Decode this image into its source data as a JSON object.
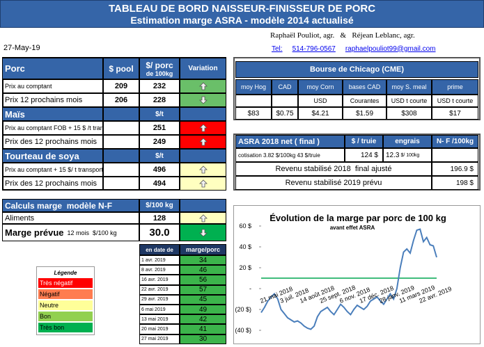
{
  "header": {
    "title": "TABLEAU DE BORD NAISSEUR-FINISSEUR DE PORC",
    "subtitle": "Estimation marge ASRA - modèle 2014 actualisé"
  },
  "authors": "Raphaël Pouliot, agr.   &   Réjean Leblanc, agr.",
  "date": "27-May-19",
  "contact": {
    "tel_label": "Tel:",
    "phone": "514-796-0567",
    "email": "raphaelpouliot99@gmail.com"
  },
  "prices": {
    "columns": [
      "$ pool",
      "$/ porc",
      "de 100kg",
      "Variation"
    ],
    "sections": [
      {
        "name": "Porc",
        "rows": [
          {
            "label": "Prix au comptant",
            "pool": 209,
            "value": 232,
            "trend": "up",
            "color": "#6abf69"
          },
          {
            "label": "Prix 12 prochains mois",
            "pool": 206,
            "value": 228,
            "trend": "down",
            "color": "#6abf69"
          }
        ]
      },
      {
        "name": "Maïs",
        "unit": "$/t",
        "rows": [
          {
            "label": "Prix au comptant FOB + 15 $ /t transport",
            "value": 251,
            "trend": "up",
            "color": "#ff0000"
          },
          {
            "label": "Prix des 12 prochains mois",
            "value": 249,
            "trend": "up",
            "color": "#ff0000"
          }
        ]
      },
      {
        "name": "Tourteau de soya",
        "unit": "$/t",
        "rows": [
          {
            "label": "Prix au comptant + 15 $/ t transport",
            "value": 496,
            "trend": "up",
            "color": "#ffffc0"
          },
          {
            "label": "Prix des 12 prochains mois",
            "value": 494,
            "trend": "up",
            "color": "#ffffc0"
          }
        ]
      }
    ]
  },
  "calc": {
    "title": "Calculs marge  modèle N-F",
    "unit": "$/100 kg",
    "feed": {
      "label": "Aliments",
      "value": 128,
      "trend": "up",
      "color": "#ffffc0"
    },
    "margin": {
      "label": "Marge prévue",
      "note": "12 mois  $/100 kg",
      "value": "30.0",
      "trend": "down",
      "color": "#00b050"
    }
  },
  "history": {
    "headers": [
      "en date de",
      "marge/porc"
    ],
    "rows": [
      [
        "1 avr. 2019",
        34
      ],
      [
        "8 avr. 2019",
        46
      ],
      [
        "16 avr. 2019",
        56
      ],
      [
        "22 avr. 2019",
        57
      ],
      [
        "29 avr. 2019",
        45
      ],
      [
        "6 mai 2019",
        49
      ],
      [
        "13 mai 2019",
        42
      ],
      [
        "20 mai 2019",
        41
      ],
      [
        "27 mai 2019",
        30
      ]
    ],
    "color": "#3cb44b"
  },
  "legend": {
    "title": "Légende",
    "items": [
      {
        "label": "Très négatif",
        "color": "#ff0000"
      },
      {
        "label": "Négatif",
        "color": "#ff7c50"
      },
      {
        "label": "Neutre",
        "color": "#ffff99"
      },
      {
        "label": "Bon",
        "color": "#92d050"
      },
      {
        "label": "Très bon",
        "color": "#00b050"
      }
    ]
  },
  "chicago": {
    "title": "Bourse de Chicago (CME)",
    "columns": [
      {
        "name": "moy Hog",
        "value": "$83"
      },
      {
        "name": "CAD",
        "value": "$0.75"
      },
      {
        "name": "moy Corn",
        "unit": "USD",
        "value": "$4.21"
      },
      {
        "name": "bases CAD",
        "unit": "Courantes",
        "value": "$1.59"
      },
      {
        "name": "moy S. meal",
        "unit": "USD t courte",
        "value": "$308"
      },
      {
        "name": "prime",
        "unit": "USD t courte",
        "value": "$17"
      }
    ]
  },
  "asra": {
    "headers": [
      "ASRA 2018 net ( final )",
      "$ / truie",
      "engrais",
      "N- F /100kg"
    ],
    "cotisation": {
      "label": "cotisation 3.82 $/100kg 43 $/truie",
      "per_sow": "124 $",
      "fertilizer": "12.3",
      "fertilizer_unit": "$/ 100kg"
    },
    "revenue_2018": {
      "label": "Revenu stabilisé 2018  final ajusté",
      "value": "196.9 $"
    },
    "revenue_2019": {
      "label": "Revenu stabilisé 2019 prévu",
      "value": "198 $"
    }
  },
  "chart_data": {
    "type": "line",
    "title": "Évolution de la marge par porc de 100 kg",
    "subtitle": "avant effet ASRA",
    "categories": [
      "21 mai 2018",
      null,
      null,
      null,
      null,
      null,
      "3 juil. 2018",
      null,
      null,
      null,
      null,
      null,
      "14 août 2018",
      null,
      null,
      null,
      null,
      null,
      "25 sept. 2018",
      null,
      null,
      null,
      null,
      null,
      "6 nov. 2018",
      null,
      null,
      null,
      null,
      null,
      "17 déc. 2018",
      null,
      null,
      null,
      null,
      null,
      "28 janv. 2019",
      null,
      null,
      null,
      null,
      null,
      "11 mars 2019",
      null,
      null,
      null,
      null,
      null,
      "22 avr. 2019",
      null,
      null,
      null,
      null,
      null
    ],
    "values": [
      -23,
      -18,
      -12,
      -8,
      -5,
      -10,
      -20,
      -24,
      -28,
      -30,
      -32,
      -31,
      -33,
      -36,
      -38,
      -39,
      -36,
      -27,
      -22,
      -20,
      -18,
      -22,
      -25,
      -20,
      -15,
      -18,
      -22,
      -25,
      -20,
      -16,
      -18,
      -20,
      -17,
      -12,
      -10,
      -8,
      -12,
      -15,
      -10,
      -5,
      -10,
      0,
      20,
      35,
      38,
      34,
      46,
      56,
      57,
      45,
      49,
      42,
      41,
      30
    ],
    "color": "#4a7ebb",
    "ylim": [
      -40,
      60
    ],
    "yticks": [
      {
        "value": -40,
        "label": "(40 $)"
      },
      {
        "value": -20,
        "label": "(20 $)"
      },
      {
        "value": 0,
        "label": "-"
      },
      {
        "value": 20,
        "label": "20 $"
      },
      {
        "value": 40,
        "label": "40 $"
      },
      {
        "value": 60,
        "label": "60 $"
      }
    ],
    "reference_line": 10,
    "reference_color": "#00a650",
    "grid": false
  }
}
